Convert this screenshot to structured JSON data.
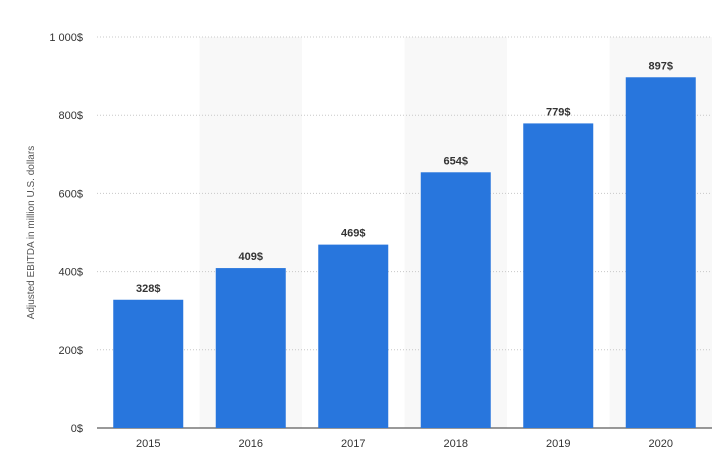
{
  "chart_data": {
    "type": "bar",
    "categories": [
      "2015",
      "2016",
      "2017",
      "2018",
      "2019",
      "2020"
    ],
    "values": [
      328,
      409,
      469,
      654,
      779,
      897
    ],
    "value_labels": [
      "328$",
      "409$",
      "469$",
      "654$",
      "779$",
      "897$"
    ],
    "title": "",
    "xlabel": "",
    "ylabel": "Adjusted EBITDA in million U.S. dollars",
    "ylim": [
      0,
      1000
    ],
    "y_ticks": [
      0,
      200,
      400,
      600,
      800,
      1000
    ],
    "y_tick_labels": [
      "0$",
      "200$",
      "400$",
      "600$",
      "800$",
      "1 000$"
    ],
    "grid": true,
    "bar_color": "#2876dd",
    "band_color": "#f8f8f8"
  }
}
